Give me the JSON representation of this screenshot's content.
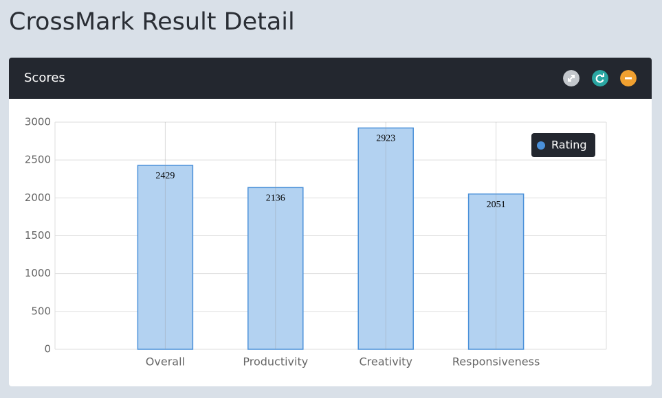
{
  "header": {
    "title": "CrossMark Result Detail"
  },
  "panel": {
    "title": "Scores"
  },
  "chart_data": {
    "type": "bar",
    "categories": [
      "Overall",
      "Productivity",
      "Creativity",
      "Responsiveness"
    ],
    "series": [
      {
        "name": "Rating",
        "color": "#4a90d9",
        "values": [
          2429,
          2136,
          2923,
          2051
        ]
      }
    ],
    "ylim": [
      0,
      3000
    ],
    "yticks": [
      0,
      500,
      1000,
      1500,
      2000,
      2500,
      3000
    ],
    "grid": true,
    "legend": "top-right"
  }
}
